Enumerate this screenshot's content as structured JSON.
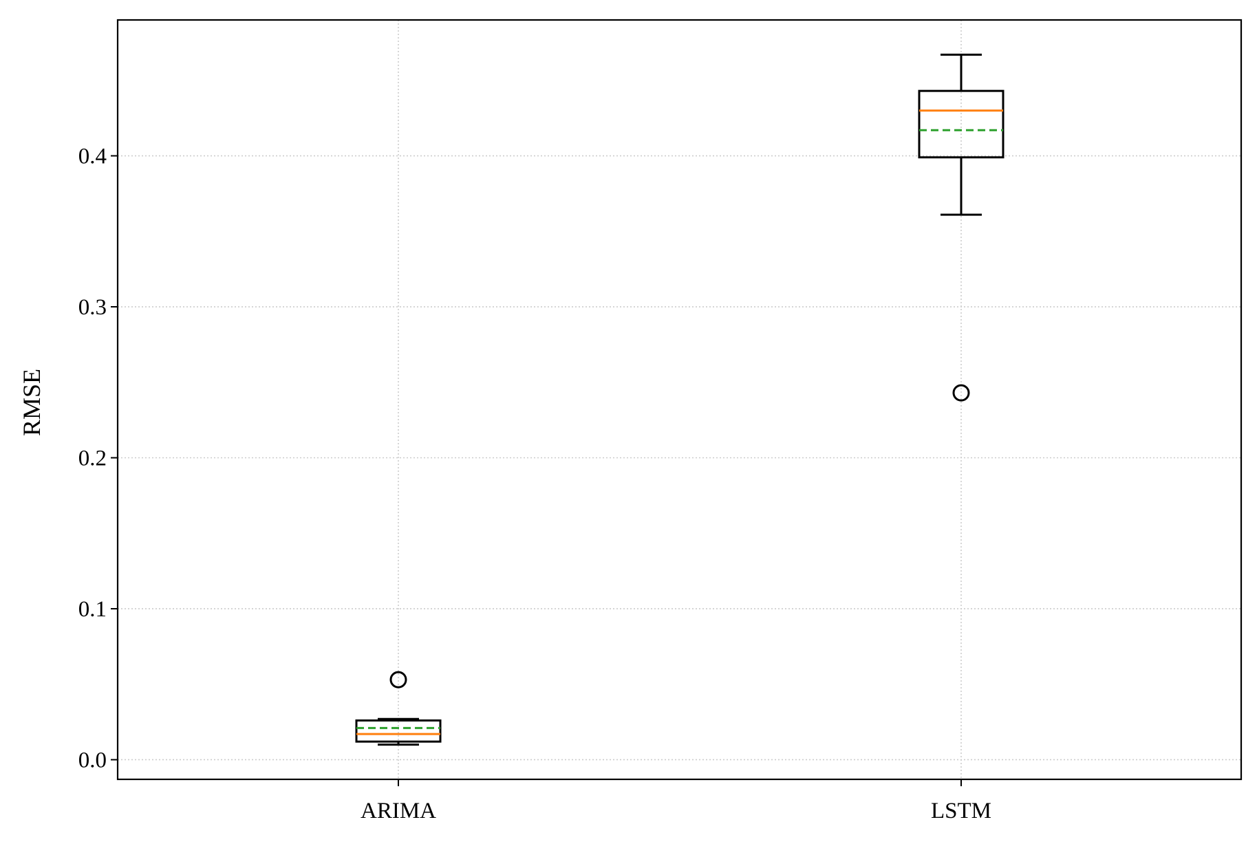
{
  "chart_data": {
    "type": "box",
    "title": "",
    "xlabel": "",
    "ylabel": "RMSE",
    "ylim": [
      -0.013,
      0.49
    ],
    "yticks": [
      0.0,
      0.1,
      0.2,
      0.3,
      0.4
    ],
    "ytick_labels": [
      "0.0",
      "0.1",
      "0.2",
      "0.3",
      "0.4"
    ],
    "grid": true,
    "categories": [
      "ARIMA",
      "LSTM"
    ],
    "boxes": [
      {
        "category": "ARIMA",
        "whisker_low": 0.01,
        "q1": 0.012,
        "median": 0.017,
        "mean": 0.021,
        "q3": 0.026,
        "whisker_high": 0.027,
        "outliers": [
          0.053
        ]
      },
      {
        "category": "LSTM",
        "whisker_low": 0.361,
        "q1": 0.399,
        "median": 0.43,
        "mean": 0.417,
        "q3": 0.443,
        "whisker_high": 0.467,
        "outliers": [
          0.243
        ]
      }
    ],
    "colors": {
      "box": "#000000",
      "median": "#ff7f0e",
      "mean": "#2ca02c",
      "grid": "#cccccc"
    }
  }
}
